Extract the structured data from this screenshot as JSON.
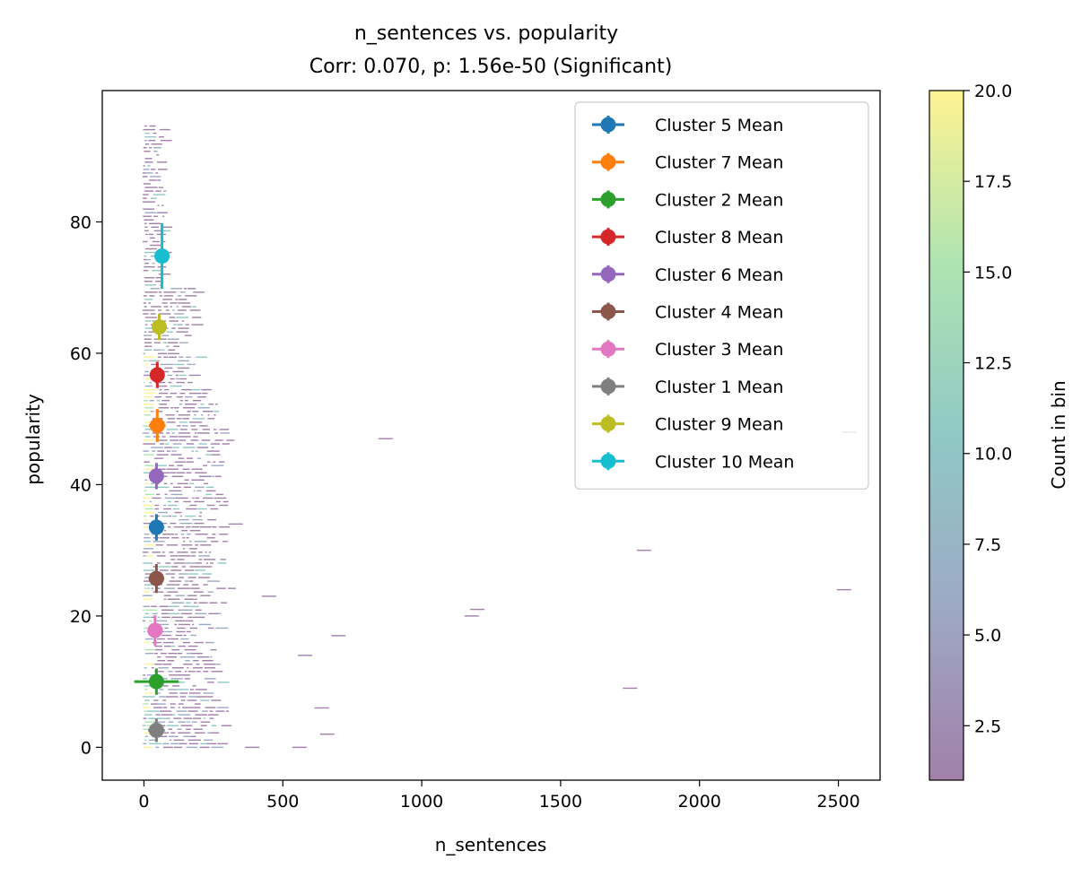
{
  "chart_data": {
    "type": "scatter",
    "title": "n_sentences vs. popularity",
    "subtitle": "Corr: 0.070, p: 1.56e-50 (Significant)",
    "xlabel": "n_sentences",
    "ylabel": "popularity",
    "xlim": [
      -150,
      2650
    ],
    "ylim": [
      -5,
      100
    ],
    "xticks": [
      0,
      500,
      1000,
      1500,
      2000,
      2500
    ],
    "yticks": [
      0,
      20,
      40,
      60,
      80
    ],
    "grid": false,
    "legend_position": "top-right",
    "colorbar": {
      "label": "Count in bin",
      "range": [
        1,
        20
      ],
      "ticks": [
        2.5,
        5.0,
        7.5,
        10.0,
        12.5,
        15.0,
        17.5,
        20.0
      ],
      "tick_labels": [
        "2.5",
        "5.0",
        "7.5",
        "10.0",
        "12.5",
        "15.0",
        "17.5",
        "20.0"
      ],
      "colormap": [
        "#440154",
        "#3b528b",
        "#21918c",
        "#5ec962",
        "#fde725"
      ],
      "alpha": 0.5
    },
    "series": [
      {
        "name": "Cluster 5 Mean",
        "color": "#1f77b4",
        "x": 45,
        "y": 33.5,
        "xerr": 25,
        "yerr": 2.0
      },
      {
        "name": "Cluster 7 Mean",
        "color": "#ff7f0e",
        "x": 48,
        "y": 49.0,
        "xerr": 30,
        "yerr": 2.5
      },
      {
        "name": "Cluster 2 Mean",
        "color": "#2ca02c",
        "x": 45,
        "y": 10.0,
        "xerr": 80,
        "yerr": 2.0
      },
      {
        "name": "Cluster 8 Mean",
        "color": "#d62728",
        "x": 48,
        "y": 56.7,
        "xerr": 12,
        "yerr": 2.0
      },
      {
        "name": "Cluster 6 Mean",
        "color": "#9467bd",
        "x": 45,
        "y": 41.3,
        "xerr": 22,
        "yerr": 2.0
      },
      {
        "name": "Cluster 4 Mean",
        "color": "#8c564b",
        "x": 45,
        "y": 25.7,
        "xerr": 28,
        "yerr": 2.2
      },
      {
        "name": "Cluster 3 Mean",
        "color": "#e377c2",
        "x": 40,
        "y": 17.8,
        "xerr": 25,
        "yerr": 2.3
      },
      {
        "name": "Cluster 1 Mean",
        "color": "#7f7f7f",
        "x": 45,
        "y": 2.6,
        "xerr": 30,
        "yerr": 1.8
      },
      {
        "name": "Cluster 9 Mean",
        "color": "#bcbd22",
        "x": 55,
        "y": 64.0,
        "xerr": 18,
        "yerr": 2.0
      },
      {
        "name": "Cluster 10 Mean",
        "color": "#17becf",
        "x": 65,
        "y": 74.8,
        "xerr": 15,
        "yerr": 5.0
      }
    ]
  }
}
